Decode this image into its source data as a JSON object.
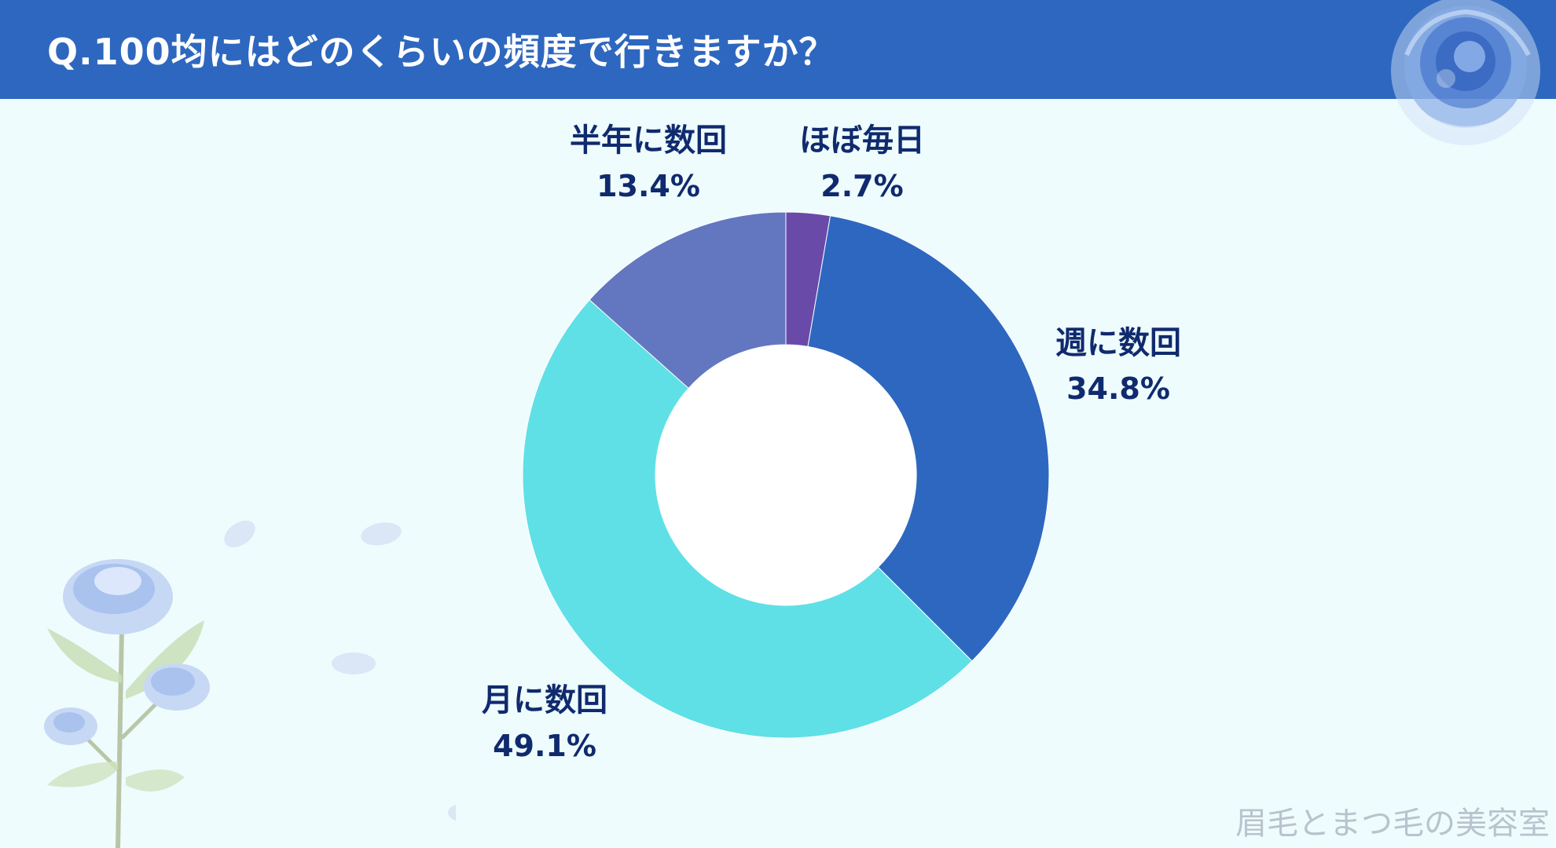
{
  "header": {
    "title": "Q.100均にはどのくらいの頻度で行きますか？",
    "color": "#2e67bf"
  },
  "chart_data": {
    "type": "pie",
    "subtype": "donut",
    "slices": [
      {
        "label": "ほぼ毎日",
        "value": 2.7,
        "value_label": "2.7%",
        "color": "#6a4aa8"
      },
      {
        "label": "週に数回",
        "value": 34.8,
        "value_label": "34.8%",
        "color": "#2e67bf"
      },
      {
        "label": "月に数回",
        "value": 49.1,
        "value_label": "49.1%",
        "color": "#5fe0e6"
      },
      {
        "label": "半年に数回",
        "value": 13.4,
        "value_label": "13.4%",
        "color": "#6377c0"
      }
    ]
  },
  "watermark": "眉毛とまつ毛の美容室",
  "colors": {
    "background": "#eefcfd",
    "label_text": "#102a6e"
  },
  "decorations": [
    "blue-rose-top-right",
    "blue-rose-bouquet-bottom-left",
    "petals"
  ]
}
